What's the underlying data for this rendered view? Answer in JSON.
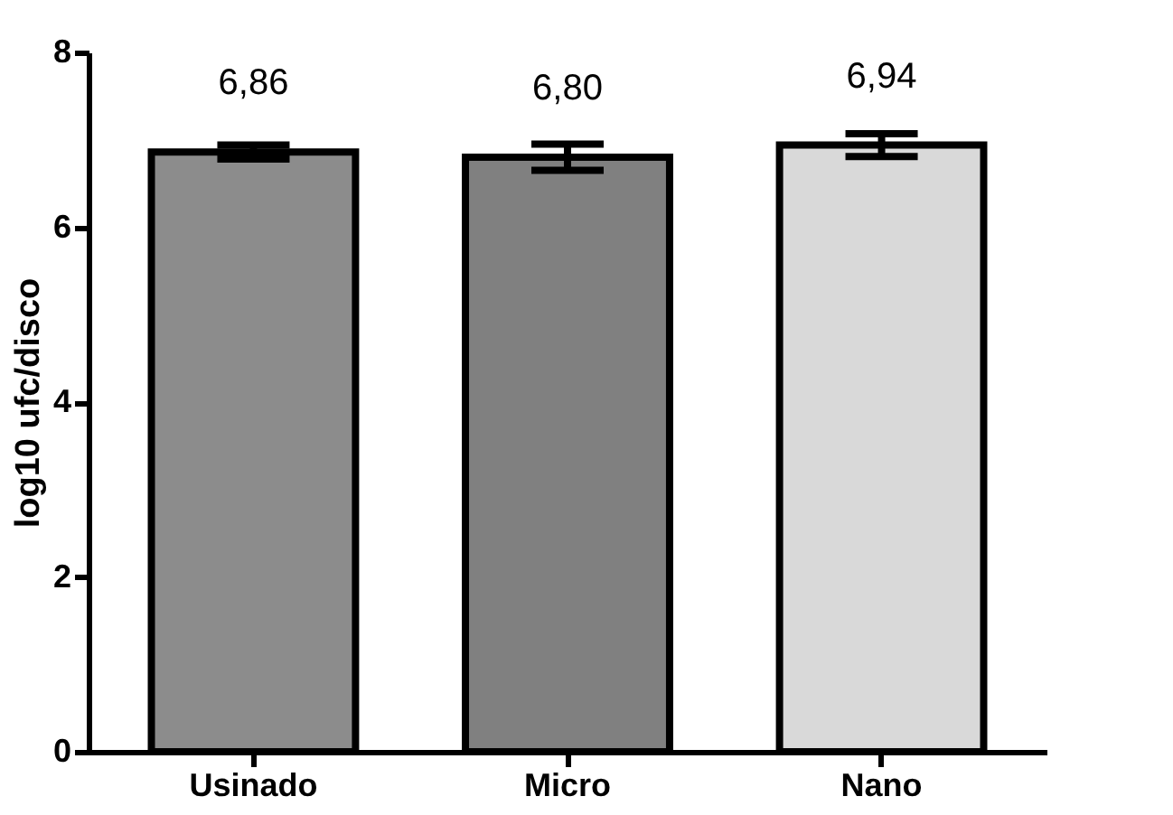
{
  "chart_data": {
    "type": "bar",
    "ylabel": "log10 ufc/disco",
    "categories": [
      "Usinado",
      "Micro",
      "Nano"
    ],
    "values": [
      6.86,
      6.8,
      6.94
    ],
    "errors": [
      0.08,
      0.15,
      0.13
    ],
    "value_labels": [
      "6,86",
      "6,80",
      "6,94"
    ],
    "colors": [
      "#8c8c8c",
      "#808080",
      "#d9d9d9"
    ],
    "ylim": [
      0,
      8
    ],
    "yticks": [
      0,
      2,
      4,
      6,
      8
    ],
    "grid": false
  }
}
